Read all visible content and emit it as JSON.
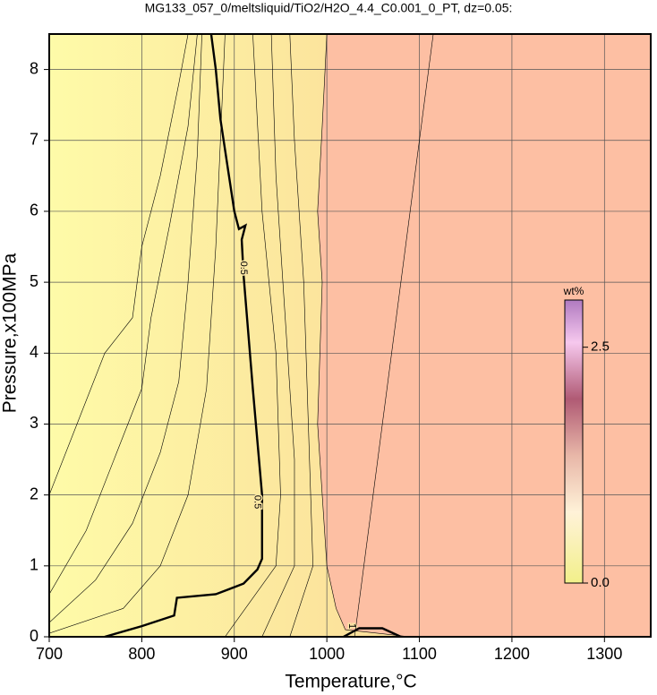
{
  "chart_data": {
    "type": "contour",
    "title": "MG133_057_0/meltsliquid/TiO2/H2O_4.4_C0.001_0_PT, dz=0.05:",
    "xlabel": "Temperature,°C",
    "ylabel": "Pressure,x100MPa",
    "xlim": [
      700,
      1350
    ],
    "ylim": [
      0,
      8.5
    ],
    "xticks": [
      700,
      800,
      900,
      1000,
      1100,
      1200,
      1300
    ],
    "yticks": [
      0,
      1,
      2,
      3,
      4,
      5,
      6,
      7,
      8
    ],
    "grid": true,
    "colorbar": {
      "label": "wt%",
      "lim": [
        0,
        3
      ],
      "ticks": [
        {
          "value": 0,
          "label": "0.0"
        },
        {
          "value": 2.5,
          "label": "2.5"
        }
      ]
    },
    "contours": [
      {
        "label": "0.5",
        "bold": true,
        "label_at": [
          [
            910,
            5.2
          ],
          [
            925,
            1.9
          ]
        ],
        "x": [
          760,
          800,
          835,
          838,
          880,
          910,
          925,
          930,
          930,
          920,
          910,
          908,
          912,
          905,
          900,
          885,
          880,
          875
        ],
        "y": [
          0,
          0.15,
          0.3,
          0.55,
          0.6,
          0.75,
          0.95,
          1.1,
          2.0,
          3.5,
          5.1,
          5.6,
          5.8,
          5.75,
          6.0,
          7.3,
          8.0,
          8.5
        ]
      },
      {
        "label": "1",
        "bold": true,
        "label_at": [
          [
            1027,
            0.15
          ]
        ],
        "x": [
          1018,
          1035,
          1060,
          1080
        ],
        "y": [
          0,
          0.12,
          0.12,
          0
        ]
      },
      {
        "x": [
          700,
          730,
          760,
          790,
          800,
          820,
          840,
          850
        ],
        "y": [
          2.0,
          3.0,
          4.0,
          4.5,
          5.5,
          6.5,
          7.8,
          8.5
        ]
      },
      {
        "x": [
          700,
          740,
          770,
          800,
          810,
          830,
          850,
          860
        ],
        "y": [
          0.6,
          1.5,
          2.5,
          3.5,
          4.5,
          5.8,
          7.2,
          8.5
        ]
      },
      {
        "x": [
          700,
          750,
          790,
          820,
          840,
          850,
          860,
          865
        ],
        "y": [
          0.2,
          0.8,
          1.6,
          2.6,
          3.6,
          5.0,
          6.8,
          8.5
        ]
      },
      {
        "x": [
          700,
          780,
          820,
          850,
          870,
          880,
          890
        ],
        "y": [
          0.05,
          0.4,
          1.0,
          2.0,
          3.5,
          5.5,
          8.5
        ]
      },
      {
        "x": [
          890,
          945,
          950,
          945,
          930,
          920
        ],
        "y": [
          0,
          1.0,
          2.0,
          4.0,
          6.0,
          8.5
        ]
      },
      {
        "x": [
          930,
          965,
          965,
          955,
          945,
          940
        ],
        "y": [
          0,
          1.0,
          2.5,
          4.5,
          6.5,
          8.5
        ]
      },
      {
        "x": [
          960,
          985,
          980,
          975,
          965,
          960
        ],
        "y": [
          0,
          1.0,
          3.0,
          5.0,
          7.0,
          8.5
        ]
      },
      {
        "x": [
          1090,
          1020,
          1010,
          1000,
          995,
          990,
          995,
          990,
          995,
          1000
        ],
        "y": [
          0,
          0.1,
          0.4,
          1.0,
          2.0,
          3.0,
          5.0,
          6.0,
          7.2,
          8.5
        ],
        "fill": "#fdbfa3"
      },
      {
        "x": [
          1030,
          1115
        ],
        "y": [
          0,
          8.5
        ]
      }
    ]
  }
}
